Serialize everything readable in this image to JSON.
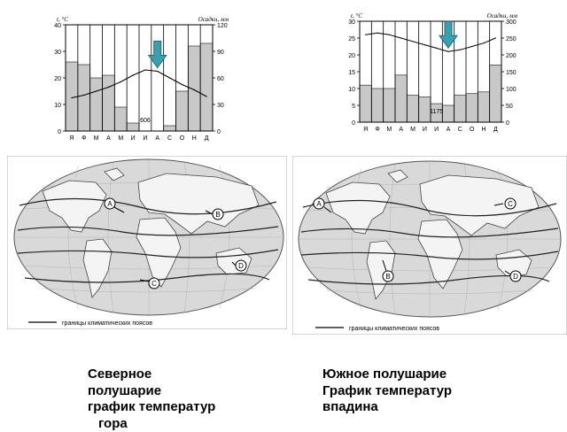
{
  "charts": {
    "chart_data": [
      {
        "type": "bar",
        "categories": [
          "Я",
          "Ф",
          "М",
          "А",
          "М",
          "И",
          "И",
          "А",
          "С",
          "О",
          "Н",
          "Д"
        ],
        "series": [
          {
            "type": "bar",
            "values": [
              26,
              25,
              20,
              21,
              9,
              3,
              0,
              0,
              2,
              15,
              32,
              33
            ]
          },
          {
            "type": "line",
            "values": [
              12.5,
              13.5,
              15,
              16.5,
              18.5,
              21,
              23,
              22.5,
              20,
              17.5,
              15.5,
              13
            ]
          }
        ],
        "ylabel_left": "t, °C",
        "ylabel_right": "Осадки, мм",
        "ylim_left": [
          0,
          40
        ],
        "ylim_right": [
          0,
          120
        ],
        "left_ticks": [
          "0",
          "10",
          "20",
          "30",
          "40"
        ],
        "right_ticks": [
          "0",
          "30",
          "60",
          "90",
          "120"
        ],
        "annotation": "606",
        "marker": "arrow-down",
        "grid": false
      },
      {
        "type": "bar",
        "categories": [
          "Я",
          "Ф",
          "М",
          "А",
          "М",
          "И",
          "И",
          "А",
          "С",
          "О",
          "Н",
          "Д"
        ],
        "series": [
          {
            "type": "bar",
            "values": [
              11,
              10,
              10,
              14,
              8,
              7.5,
              5.5,
              5,
              8,
              8.5,
              9,
              17
            ]
          },
          {
            "type": "line",
            "values": [
              26,
              26.5,
              26,
              25,
              24,
              23,
              22,
              21,
              21.5,
              22.5,
              23.5,
              25
            ]
          }
        ],
        "ylabel_left": "t, °C",
        "ylabel_right": "Осадки, мм",
        "ylim_left": [
          0,
          30
        ],
        "ylim_right": [
          0,
          300
        ],
        "left_ticks": [
          "0",
          "5",
          "10",
          "15",
          "20",
          "25",
          "30"
        ],
        "right_ticks": [
          "0",
          "50",
          "100",
          "150",
          "200",
          "250",
          "300"
        ],
        "annotation": "1175",
        "marker": "arrow-down",
        "grid": false
      }
    ]
  },
  "maps": {
    "left": {
      "markers": [
        "A",
        "B",
        "C",
        "D"
      ],
      "legend_text": "границы климатических поясов"
    },
    "right": {
      "markers": [
        "A",
        "B",
        "C",
        "D"
      ],
      "legend_text": "границы климатических поясов"
    }
  },
  "captions": {
    "left": [
      "Северное",
      "полушарие",
      "график температур",
      "гора"
    ],
    "right": [
      "Южное полушарие",
      "График температур",
      "впадина"
    ]
  },
  "colors": {
    "bar_fill": "#c8c8c8",
    "arrow": "#3aa0b0",
    "map_bg": "#d9d9d9",
    "land": "#f4f4f4"
  }
}
